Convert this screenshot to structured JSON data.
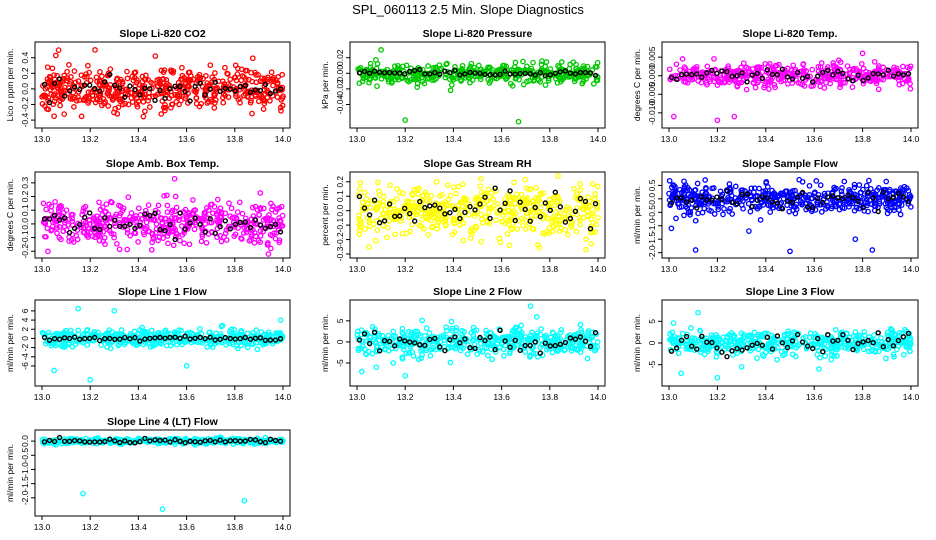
{
  "figure": {
    "title": "SPL_060113  2.5 Min. Slope Diagnostics"
  },
  "chart_data": [
    {
      "type": "scatter",
      "title": "Slope Li-820 CO2",
      "ylabel": "Lico r ppm per min.",
      "xlim": [
        13.0,
        14.0
      ],
      "ylim": [
        -0.45,
        0.55
      ],
      "xticks": [
        "13.0",
        "13.2",
        "13.4",
        "13.6",
        "13.8",
        "14.0"
      ],
      "yticks": [
        -0.4,
        -0.2,
        0.0,
        0.2,
        0.4
      ],
      "ytick_labels": [
        "-0.4",
        "-0.2",
        "0.0",
        "0.2",
        "0.4"
      ],
      "color": "#ff0000",
      "spread": 0.14,
      "mean_spread": 0.07,
      "outliers": [
        [
          13.22,
          0.5
        ],
        [
          13.47,
          0.42
        ],
        [
          13.05,
          -0.35
        ]
      ],
      "n": 520,
      "seed": 11
    },
    {
      "type": "scatter",
      "title": "Slope Li-820 Pressure",
      "ylabel": "kPa per min.",
      "xlim": [
        13.0,
        14.0
      ],
      "ylim": [
        -0.065,
        0.035
      ],
      "xticks": [
        "13.0",
        "13.2",
        "13.4",
        "13.6",
        "13.8",
        "14.0"
      ],
      "yticks": [
        -0.04,
        -0.02,
        0.0,
        0.02
      ],
      "ytick_labels": [
        "-0.04",
        "-0.02",
        "0.00",
        "0.02"
      ],
      "color": "#00c800",
      "spread": 0.006,
      "mean_spread": 0.002,
      "outliers": [
        [
          13.2,
          -0.06
        ],
        [
          13.67,
          -0.062
        ],
        [
          13.1,
          0.03
        ]
      ],
      "n": 420,
      "seed": 23
    },
    {
      "type": "scatter",
      "title": "Slope Li-820 Temp.",
      "ylabel": "degrees C per min.",
      "xlim": [
        13.0,
        14.0
      ],
      "ylim": [
        -0.013,
        0.008
      ],
      "xticks": [
        "13.0",
        "13.2",
        "13.4",
        "13.6",
        "13.8",
        "14.0"
      ],
      "yticks": [
        -0.01,
        -0.005,
        0.0,
        0.005
      ],
      "ytick_labels": [
        "-0.010",
        "-0.005",
        "0.000",
        "0.005"
      ],
      "color": "#ff00ff",
      "spread": 0.0015,
      "mean_spread": 0.0008,
      "outliers": [
        [
          13.02,
          -0.011
        ],
        [
          13.2,
          -0.012
        ],
        [
          13.8,
          0.006
        ],
        [
          13.27,
          -0.011
        ]
      ],
      "n": 420,
      "seed": 37
    },
    {
      "type": "scatter",
      "title": "Slope Amb. Box Temp.",
      "ylabel": "degrees C per min.",
      "xlim": [
        13.0,
        14.0
      ],
      "ylim": [
        -0.22,
        0.35
      ],
      "xticks": [
        "13.0",
        "13.2",
        "13.4",
        "13.6",
        "13.8",
        "14.0"
      ],
      "yticks": [
        -0.2,
        -0.1,
        0.0,
        0.1,
        0.2,
        0.3
      ],
      "ytick_labels": [
        "-0.2",
        "-0.1",
        "0.0",
        "0.1",
        "0.2",
        "0.3"
      ],
      "color": "#ff00ff",
      "spread": 0.08,
      "mean_spread": 0.05,
      "outliers": [
        [
          13.55,
          0.33
        ],
        [
          13.95,
          -0.18
        ]
      ],
      "n": 480,
      "seed": 41
    },
    {
      "type": "scatter",
      "title": "Slope Gas Stream RH",
      "ylabel": "percent per min.",
      "xlim": [
        13.0,
        14.0
      ],
      "ylim": [
        -0.3,
        0.24
      ],
      "xticks": [
        "13.0",
        "13.2",
        "13.4",
        "13.6",
        "13.8",
        "14.0"
      ],
      "yticks": [
        -0.3,
        -0.2,
        -0.1,
        0.0,
        0.1,
        0.2
      ],
      "ytick_labels": [
        "-0.3",
        "-0.2",
        "-0.1",
        "0.0",
        "0.1",
        "0.2"
      ],
      "color": "#ffff00",
      "spread": 0.09,
      "mean_spread": 0.07,
      "outliers": [
        [
          13.05,
          -0.25
        ],
        [
          13.33,
          0.2
        ],
        [
          13.95,
          -0.27
        ]
      ],
      "n": 480,
      "seed": 53
    },
    {
      "type": "scatter",
      "title": "Slope Sample Flow",
      "ylabel": "ml/min per min.",
      "xlim": [
        13.0,
        14.0
      ],
      "ylim": [
        -2.05,
        0.85
      ],
      "xticks": [
        "13.0",
        "13.2",
        "13.4",
        "13.6",
        "13.8",
        "14.0"
      ],
      "yticks": [
        -2.0,
        -1.5,
        -1.0,
        -0.5,
        0.0,
        0.5
      ],
      "ytick_labels": [
        "-2.0",
        "-1.5",
        "-1.0",
        "-0.5",
        "0.0",
        "0.5"
      ],
      "color": "#0000ff",
      "spread": 0.25,
      "mean_spread": 0.18,
      "outliers": [
        [
          13.11,
          -1.9
        ],
        [
          13.33,
          -1.2
        ],
        [
          13.5,
          -1.95
        ],
        [
          13.01,
          -1.1
        ],
        [
          13.77,
          -1.5
        ],
        [
          13.84,
          -1.9
        ]
      ],
      "n": 480,
      "seed": 67
    },
    {
      "type": "scatter",
      "title": "Slope Line 1 Flow",
      "ylabel": "ml/min per min.",
      "xlim": [
        13.0,
        14.0
      ],
      "ylim": [
        -9.5,
        7.5
      ],
      "xticks": [
        "13.0",
        "13.2",
        "13.4",
        "13.6",
        "13.8",
        "14.0"
      ],
      "yticks": [
        -6,
        -4,
        -2,
        0,
        2,
        4,
        6
      ],
      "ytick_labels": [
        "-6",
        "-4",
        "-2",
        "0",
        "2",
        "4",
        "6"
      ],
      "color": "#00ffff",
      "spread": 0.9,
      "mean_spread": 0.25,
      "outliers": [
        [
          13.2,
          -9
        ],
        [
          13.05,
          -7
        ],
        [
          13.6,
          -6
        ],
        [
          13.3,
          6
        ],
        [
          13.99,
          4
        ],
        [
          13.15,
          6.5
        ]
      ],
      "n": 420,
      "seed": 79
    },
    {
      "type": "scatter",
      "title": "Slope Line 2 Flow",
      "ylabel": "ml/min per min.",
      "xlim": [
        13.0,
        14.0
      ],
      "ylim": [
        -9.5,
        9
      ],
      "xticks": [
        "13.0",
        "13.2",
        "13.4",
        "13.6",
        "13.8",
        "14.0"
      ],
      "yticks": [
        -5,
        0,
        5
      ],
      "ytick_labels": [
        "-5",
        "0",
        "5"
      ],
      "color": "#00ffff",
      "spread": 1.6,
      "mean_spread": 1.2,
      "outliers": [
        [
          13.02,
          -7
        ],
        [
          13.2,
          -8
        ],
        [
          13.72,
          8.5
        ],
        [
          13.15,
          -5
        ],
        [
          13.08,
          -6
        ]
      ],
      "n": 460,
      "seed": 89
    },
    {
      "type": "scatter",
      "title": "Slope Line 3 Flow",
      "ylabel": "ml/min per min.",
      "xlim": [
        13.0,
        14.0
      ],
      "ylim": [
        -9,
        9
      ],
      "xticks": [
        "13.0",
        "13.2",
        "13.4",
        "13.6",
        "13.8",
        "14.0"
      ],
      "yticks": [
        -5,
        0,
        5
      ],
      "ytick_labels": [
        "-5",
        "0",
        "5"
      ],
      "color": "#00ffff",
      "spread": 1.5,
      "mean_spread": 1.3,
      "outliers": [
        [
          13.05,
          -7
        ],
        [
          13.2,
          -8
        ],
        [
          13.12,
          7
        ],
        [
          13.62,
          -6
        ],
        [
          13.3,
          -5.5
        ]
      ],
      "n": 460,
      "seed": 97
    },
    {
      "type": "scatter",
      "title": "Slope Line 4 (LT) Flow",
      "ylabel": "ml/min per min.",
      "xlim": [
        13.0,
        14.0
      ],
      "ylim": [
        -2.5,
        0.25
      ],
      "xticks": [
        "13.0",
        "13.2",
        "13.4",
        "13.6",
        "13.8",
        "14.0"
      ],
      "yticks": [
        -2.0,
        -1.5,
        -1.0,
        -0.5,
        0.0
      ],
      "ytick_labels": [
        "-2.0",
        "-1.5",
        "-1.0",
        "-0.5",
        "0.0"
      ],
      "color": "#00ffff",
      "spread": 0.05,
      "mean_spread": 0.04,
      "outliers": [
        [
          13.17,
          -1.85
        ],
        [
          13.5,
          -2.4
        ],
        [
          13.84,
          -2.1
        ]
      ],
      "n": 420,
      "seed": 103
    }
  ]
}
